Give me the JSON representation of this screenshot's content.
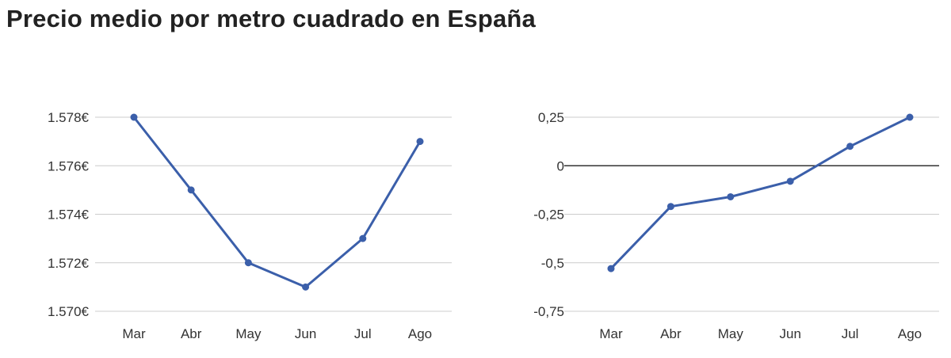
{
  "title": "Precio medio por metro cuadrado en España",
  "colors": {
    "series": "#3b5faa",
    "grid": "#cccccc",
    "zero_line": "#333333",
    "text": "#333333",
    "title": "#222222"
  },
  "chart_data": [
    {
      "type": "line",
      "categories": [
        "Mar",
        "Abr",
        "May",
        "Jun",
        "Jul",
        "Ago"
      ],
      "series": [
        {
          "values": [
            1578,
            1575,
            1572,
            1571,
            1573,
            1577
          ]
        }
      ],
      "ylim": [
        1570,
        1578
      ],
      "yticks": [
        1578,
        1576,
        1574,
        1572,
        1570
      ],
      "ytick_labels": [
        "1.578€",
        "1.576€",
        "1.574€",
        "1.572€",
        "1.570€"
      ],
      "grid": true,
      "legend": "none"
    },
    {
      "type": "line",
      "categories": [
        "Mar",
        "Abr",
        "May",
        "Jun",
        "Jul",
        "Ago"
      ],
      "series": [
        {
          "values": [
            -0.53,
            -0.21,
            -0.16,
            -0.08,
            0.1,
            0.25
          ]
        }
      ],
      "ylim": [
        -0.75,
        0.25
      ],
      "yticks": [
        0.25,
        0,
        -0.25,
        -0.5,
        -0.75
      ],
      "ytick_labels": [
        "0,25",
        "0",
        "-0,25",
        "-0,5",
        "-0,75"
      ],
      "grid": true,
      "zero_line": true,
      "legend": "none"
    }
  ]
}
